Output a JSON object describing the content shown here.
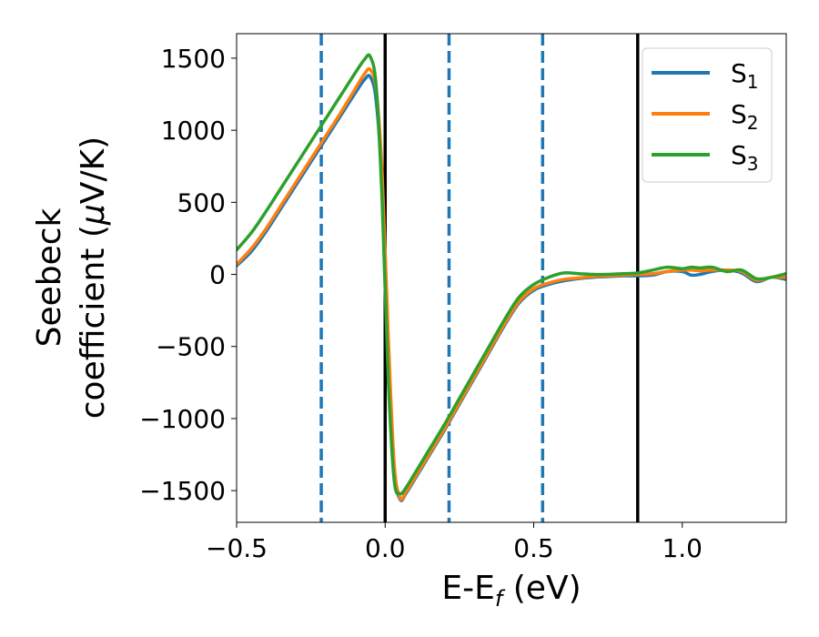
{
  "chart_data": {
    "type": "line",
    "xlabel": {
      "main": "E-E",
      "sub": "f",
      "tail": " (eV)"
    },
    "ylabel": {
      "line1": "Seebeck",
      "line2_prefix": "coefficient  (",
      "mu": "μ",
      "line2_suffix": "V/K)"
    },
    "xlim": [
      -0.5,
      1.35
    ],
    "ylim": [
      -1720,
      1670
    ],
    "x_ticks": [
      {
        "value": -0.5,
        "label": "−0.5"
      },
      {
        "value": 0.0,
        "label": "0.0"
      },
      {
        "value": 0.5,
        "label": "0.5"
      },
      {
        "value": 1.0,
        "label": "1.0"
      }
    ],
    "y_ticks": [
      {
        "value": 1500,
        "label": "1500"
      },
      {
        "value": 1000,
        "label": "1000"
      },
      {
        "value": 500,
        "label": "500"
      },
      {
        "value": 0,
        "label": "0"
      },
      {
        "value": -500,
        "label": "−500"
      },
      {
        "value": -1000,
        "label": "−1000"
      },
      {
        "value": -1500,
        "label": "−1500"
      }
    ],
    "vlines": [
      {
        "x": -0.215,
        "style": "dashed",
        "color": "#1f77b4"
      },
      {
        "x": 0.0,
        "style": "solid",
        "color": "#000000"
      },
      {
        "x": 0.215,
        "style": "dashed",
        "color": "#1f77b4"
      },
      {
        "x": 0.53,
        "style": "dashed",
        "color": "#1f77b4"
      },
      {
        "x": 0.85,
        "style": "solid",
        "color": "#000000"
      }
    ],
    "legend_position": "top-right",
    "series": [
      {
        "name": "S",
        "sub": "1",
        "color": "#1f77b4",
        "x": [
          -0.5,
          -0.45,
          -0.4,
          -0.35,
          -0.3,
          -0.25,
          -0.2,
          -0.15,
          -0.1,
          -0.07,
          -0.05,
          -0.03,
          -0.01,
          0.01,
          0.03,
          0.05,
          0.07,
          0.1,
          0.15,
          0.2,
          0.25,
          0.3,
          0.35,
          0.4,
          0.45,
          0.5,
          0.55,
          0.6,
          0.65,
          0.7,
          0.75,
          0.8,
          0.85,
          0.9,
          0.95,
          1.0,
          1.03,
          1.06,
          1.1,
          1.15,
          1.2,
          1.25,
          1.3,
          1.35
        ],
        "y": [
          60,
          160,
          300,
          460,
          620,
          780,
          940,
          1100,
          1260,
          1350,
          1370,
          1200,
          600,
          -500,
          -1350,
          -1560,
          -1520,
          -1420,
          -1250,
          -1080,
          -900,
          -720,
          -540,
          -360,
          -200,
          -110,
          -70,
          -45,
          -30,
          -20,
          -15,
          -10,
          -10,
          -5,
          20,
          20,
          -5,
          0,
          20,
          30,
          10,
          -50,
          -20,
          -35
        ]
      },
      {
        "name": "S",
        "sub": "2",
        "color": "#ff7f0e",
        "x": [
          -0.5,
          -0.45,
          -0.4,
          -0.35,
          -0.3,
          -0.25,
          -0.2,
          -0.15,
          -0.1,
          -0.07,
          -0.05,
          -0.03,
          -0.01,
          0.01,
          0.03,
          0.05,
          0.07,
          0.1,
          0.15,
          0.2,
          0.25,
          0.3,
          0.35,
          0.4,
          0.45,
          0.5,
          0.55,
          0.6,
          0.65,
          0.7,
          0.75,
          0.8,
          0.85,
          0.9,
          0.95,
          1.0,
          1.03,
          1.06,
          1.1,
          1.15,
          1.2,
          1.25,
          1.3,
          1.35
        ],
        "y": [
          70,
          180,
          320,
          480,
          640,
          800,
          960,
          1120,
          1290,
          1390,
          1420,
          1280,
          700,
          -400,
          -1300,
          -1550,
          -1510,
          -1410,
          -1240,
          -1070,
          -890,
          -710,
          -530,
          -350,
          -190,
          -100,
          -60,
          -35,
          -25,
          -15,
          -10,
          -5,
          0,
          5,
          20,
          30,
          30,
          25,
          30,
          30,
          20,
          -40,
          -20,
          -20
        ]
      },
      {
        "name": "S",
        "sub": "3",
        "color": "#2ca02c",
        "x": [
          -0.5,
          -0.45,
          -0.4,
          -0.35,
          -0.3,
          -0.25,
          -0.2,
          -0.15,
          -0.1,
          -0.07,
          -0.05,
          -0.03,
          -0.01,
          0.01,
          0.03,
          0.05,
          0.07,
          0.1,
          0.15,
          0.2,
          0.25,
          0.3,
          0.35,
          0.4,
          0.45,
          0.5,
          0.55,
          0.6,
          0.65,
          0.7,
          0.75,
          0.8,
          0.85,
          0.9,
          0.95,
          1.0,
          1.03,
          1.06,
          1.1,
          1.15,
          1.2,
          1.25,
          1.3,
          1.35
        ],
        "y": [
          170,
          290,
          440,
          600,
          760,
          920,
          1080,
          1240,
          1400,
          1490,
          1510,
          1300,
          500,
          -700,
          -1420,
          -1520,
          -1480,
          -1380,
          -1210,
          -1040,
          -860,
          -680,
          -500,
          -320,
          -160,
          -70,
          -20,
          10,
          5,
          0,
          0,
          5,
          10,
          30,
          50,
          40,
          50,
          45,
          50,
          20,
          30,
          -30,
          -20,
          5
        ]
      }
    ]
  }
}
